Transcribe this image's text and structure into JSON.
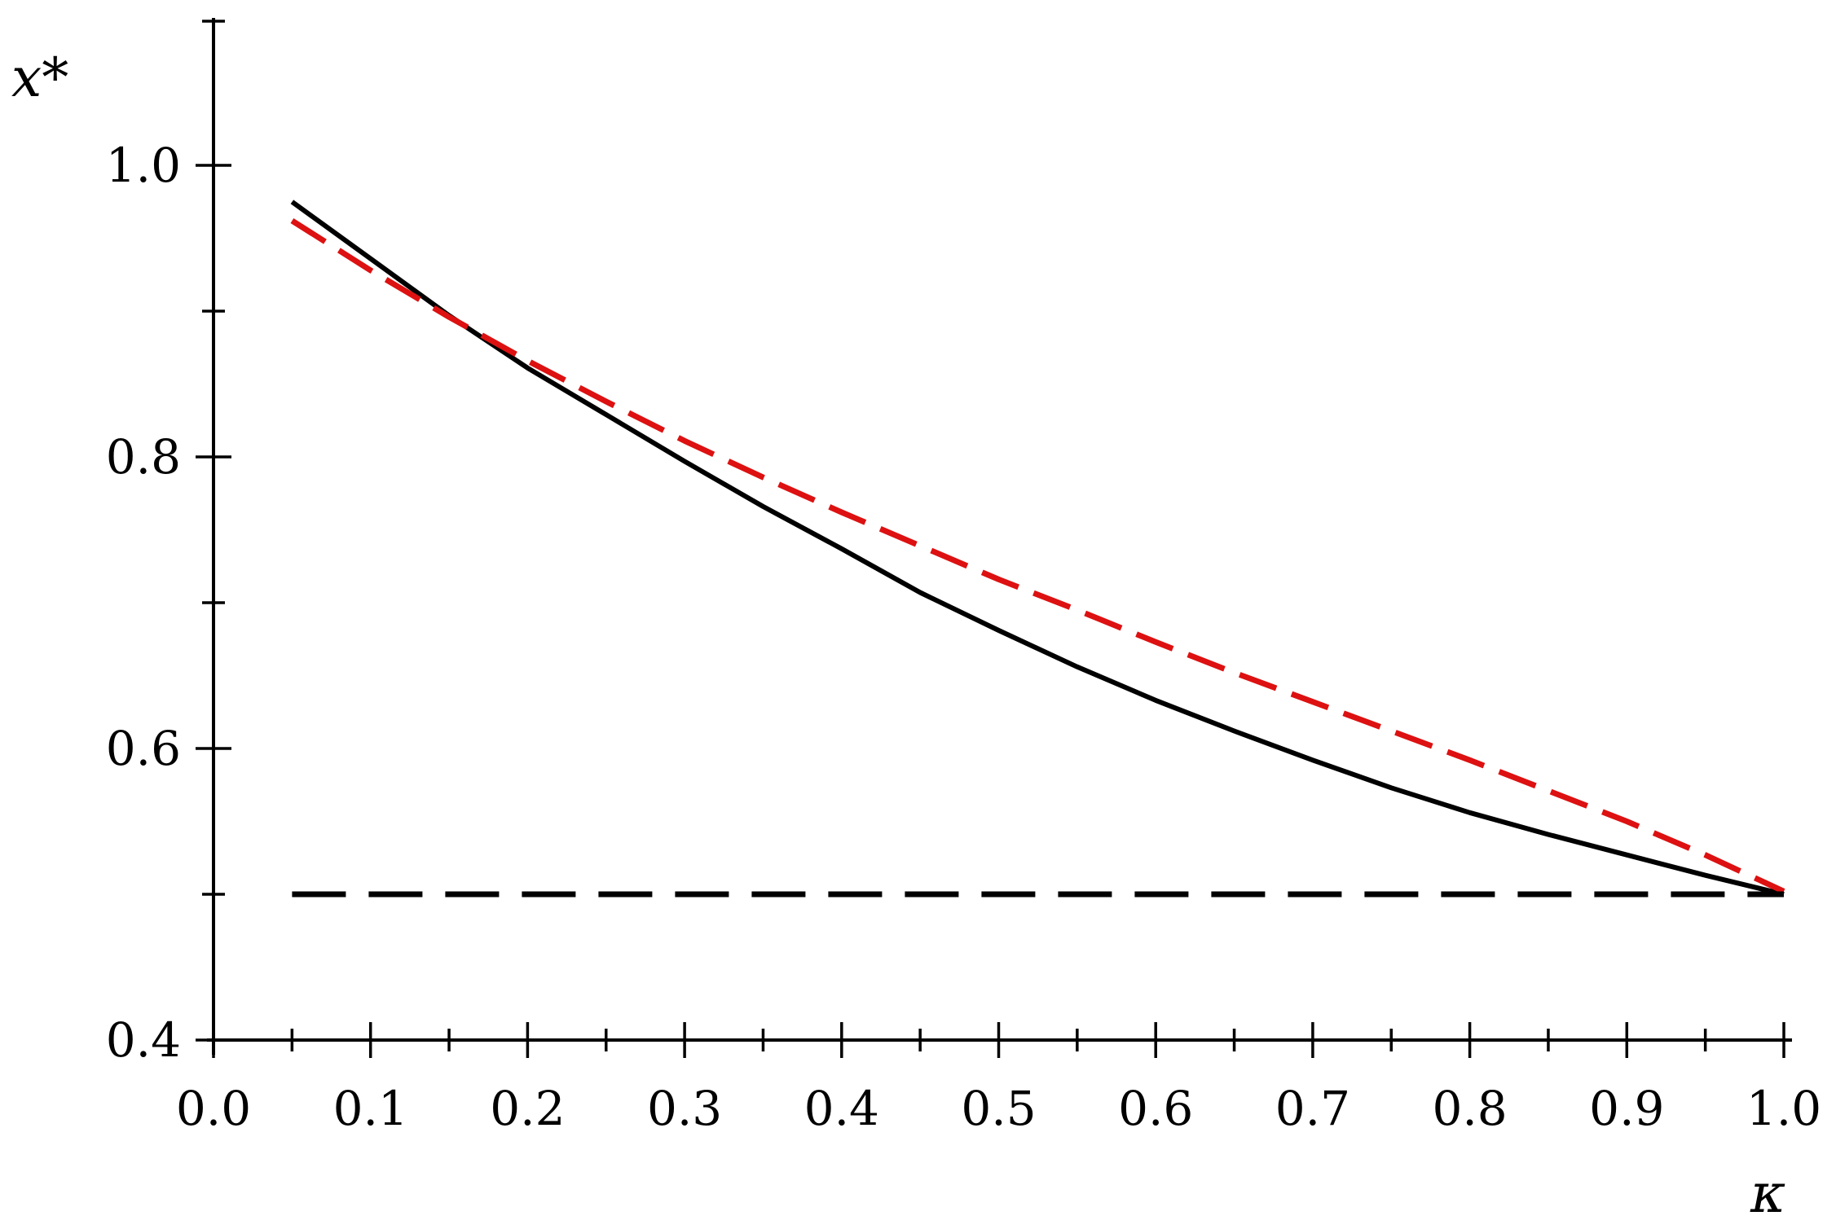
{
  "chart_data": {
    "type": "line",
    "xlabel": "κ",
    "ylabel": "x*",
    "xlim": [
      0.0,
      1.0
    ],
    "ylim": [
      0.4,
      1.1
    ],
    "grid": false,
    "legend": "none",
    "xticks": [
      "0.0",
      "0.1",
      "0.2",
      "0.3",
      "0.4",
      "0.5",
      "0.6",
      "0.7",
      "0.8",
      "0.9",
      "1.0"
    ],
    "yticks": [
      "0.4",
      "0.6",
      "0.8",
      "1.0"
    ],
    "series": [
      {
        "style": "solid",
        "color": "#000000",
        "x": [
          0.05,
          0.1,
          0.15,
          0.2,
          0.25,
          0.3,
          0.35,
          0.4,
          0.45,
          0.5,
          0.55,
          0.6,
          0.65,
          0.7,
          0.75,
          0.8,
          0.85,
          0.9,
          0.95,
          1.0
        ],
        "y": [
          0.975,
          0.936,
          0.897,
          0.861,
          0.829,
          0.797,
          0.766,
          0.737,
          0.707,
          0.681,
          0.656,
          0.633,
          0.612,
          0.592,
          0.573,
          0.556,
          0.541,
          0.527,
          0.513,
          0.5
        ]
      },
      {
        "style": "dashed",
        "color": "#dd1111",
        "x": [
          0.05,
          0.1,
          0.15,
          0.2,
          0.25,
          0.3,
          0.35,
          0.4,
          0.45,
          0.5,
          0.55,
          0.6,
          0.65,
          0.7,
          0.75,
          0.8,
          0.85,
          0.9,
          0.95,
          1.0
        ],
        "y": [
          0.962,
          0.928,
          0.896,
          0.866,
          0.838,
          0.811,
          0.786,
          0.762,
          0.739,
          0.716,
          0.695,
          0.673,
          0.652,
          0.632,
          0.612,
          0.592,
          0.571,
          0.55,
          0.527,
          0.502
        ]
      },
      {
        "style": "dashed",
        "color": "#000000",
        "x": [
          0.05,
          1.0
        ],
        "y": [
          0.5,
          0.5
        ]
      }
    ]
  }
}
